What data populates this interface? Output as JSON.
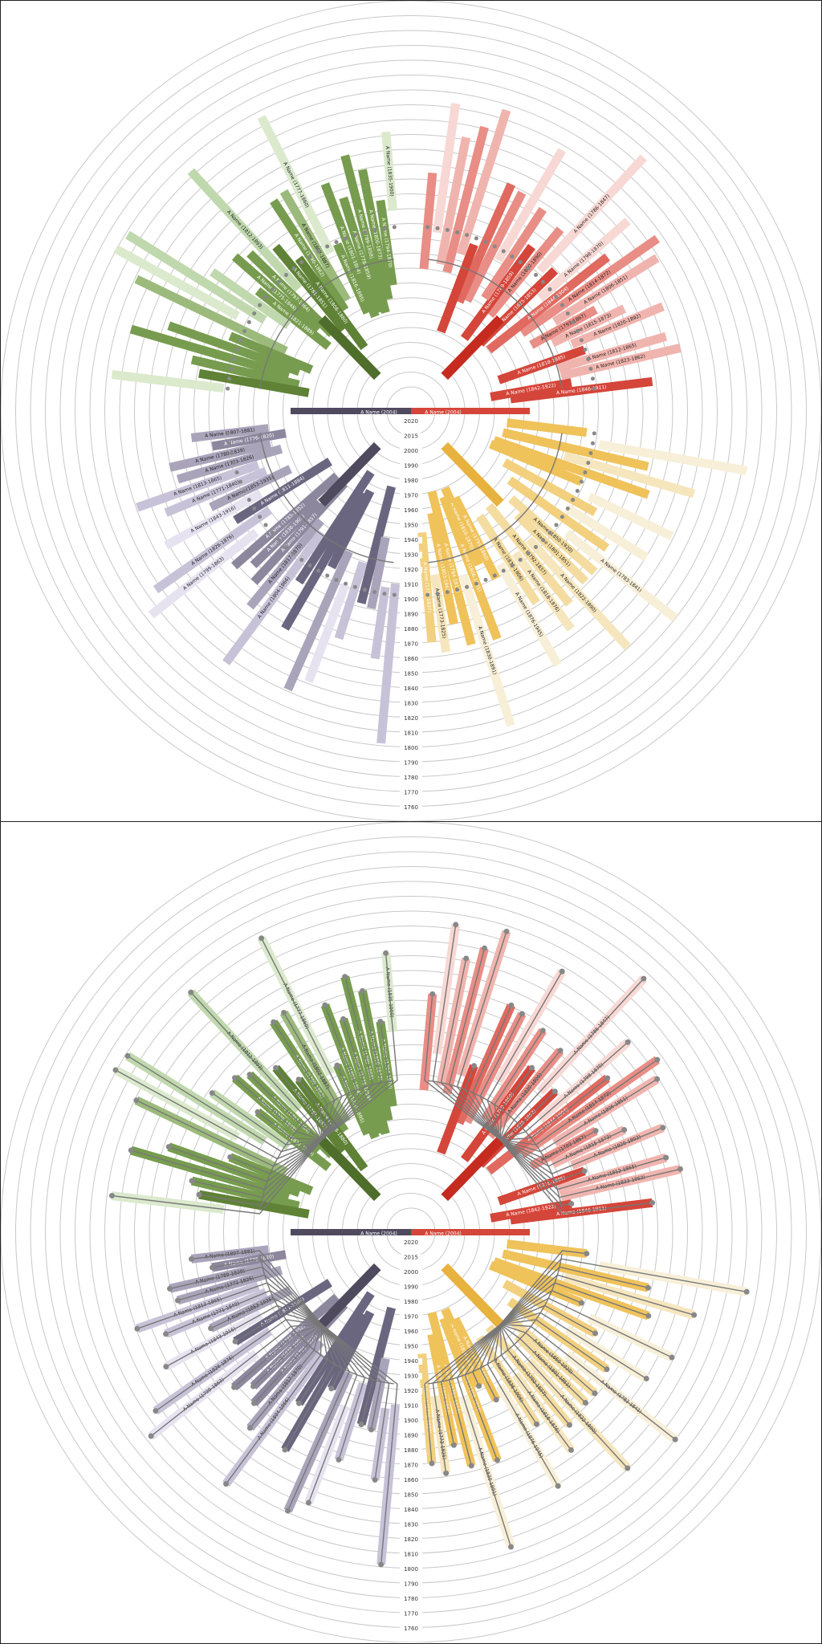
{
  "years": [
    "2020",
    "2015",
    "2000",
    "1990",
    "1980",
    "1970",
    "1960",
    "1950",
    "1940",
    "1930",
    "1920",
    "1910",
    "1900",
    "1890",
    "1880",
    "1870",
    "1860",
    "1850",
    "1840",
    "1830",
    "1820",
    "1810",
    "1800",
    "1790",
    "1780",
    "1770",
    "1760"
  ],
  "center": {
    "left": "A Name (2004)",
    "right": "A Name (2004)"
  },
  "branches": [
    {
      "key": "green",
      "colors": [
        "#4f6e2b",
        "#5f8236",
        "#779c4f",
        "#9cba7c",
        "#c0d8ad",
        "#dbe9cd"
      ],
      "labels": [
        "A Name (1835-1900)",
        "A Name (1794-1870)",
        "A Name (1800-1873)",
        "A Name (1789-1858)",
        "A Name (1778-1859)",
        "A Name (1801-1884)",
        "A Name (1816-1895)",
        "A Name (1777-1860)",
        "A Name (1802-1887)",
        "A Name (1790-1862)",
        "A Name (1808-1880)",
        "A Name (1781-1851)",
        "A Name (1812-1893)",
        "A Name (1797-1864)",
        "A Name (1775-1848)",
        "A Name (1821-1889)"
      ]
    },
    {
      "key": "red",
      "colors": [
        "#c62b20",
        "#d4463a",
        "#e06a60",
        "#e88e86",
        "#f0b4ae",
        "#f8d8d4"
      ],
      "labels": [
        "A Name (1846-1911)",
        "A Name (1842-1922)",
        "A Name (1823-1862)",
        "A Name (1812-1865)",
        "A Name (1818-1885)",
        "A Name (1820-1892)",
        "A Name (1815-1873)",
        "A Name (1793-1867)",
        "A Name (1806-1851)",
        "A Name (1814-1872)",
        "A Name (1844-1904)",
        "A Name (1798-1870)",
        "A Name (1825-1853)",
        "A Name (1786-1847)",
        "A Name (1830-1890)",
        "A Name (1789-1859)"
      ]
    },
    {
      "key": "yellow",
      "colors": [
        "#e8b23e",
        "#efc25a",
        "#f2d07e",
        "#f4dca0",
        "#f6e6be",
        "#f8efd8"
      ],
      "labels": [
        "A Name (1776-1837)",
        "A Name (1773-1825)",
        "A Name (1803-1863)",
        "A Name (1784-1819)",
        "A Name (1830-1891)",
        "A Name (1806-1845)",
        "A Name (1810-1870)",
        "A Name (1795-1860)",
        "A Name (1876-1945)",
        "A Name (1836-1906)",
        "A Name (1818-1876)",
        "A Name (1792-1837)",
        "A Name (1822-1890)",
        "A Name (1801-1851)",
        "A Name (1850-1920)",
        "A Name (1783-1841)"
      ]
    },
    {
      "key": "purple",
      "colors": [
        "#4f4a5e",
        "#6b6680",
        "#8d879e",
        "#aaa4bb",
        "#c8c2d8",
        "#e6e2f0"
      ],
      "labels": [
        "A Name (1807-1881)",
        "A Name (1776-1820)",
        "A Name (1780-1839)",
        "A Name (1773-1826)",
        "A Name (1813-1865)",
        "A Name (1771-1840)",
        "A Name (1853-1935)",
        "A Name (1843-1916)",
        "A Name (1811-1884)",
        "A Name (1826-1876)",
        "A Name (1799-1863)",
        "A Name (1785-1852)",
        "A Name (1838-1903)",
        "A Name (1791-1857)",
        "A Name (1817-1870)",
        "A Name (1804-1866)"
      ]
    }
  ]
}
